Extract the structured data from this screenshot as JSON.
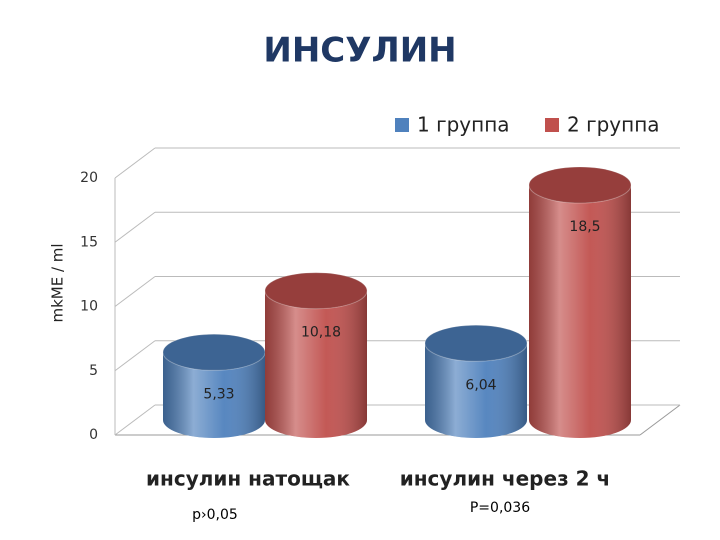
{
  "chart_data": {
    "type": "bar",
    "title": "ИНСУЛИН",
    "ylabel": "mkME / ml",
    "categories": [
      "инсулин натощак",
      "инсулин через 2 ч"
    ],
    "series": [
      {
        "name": "1 группа",
        "color": "#4f81bd",
        "values": [
          5.33,
          6.04
        ],
        "value_labels": [
          "5,33",
          "6,04"
        ]
      },
      {
        "name": "2 группа",
        "color": "#c0504d",
        "values": [
          10.18,
          18.5
        ],
        "value_labels": [
          "10,18",
          "18,5"
        ]
      }
    ],
    "ylim": [
      0,
      20
    ],
    "yticks": [
      0,
      5,
      10,
      15,
      20
    ],
    "grid": true,
    "legend": "top-right",
    "annotations": [
      "p›0,05",
      "P=0,036"
    ]
  }
}
